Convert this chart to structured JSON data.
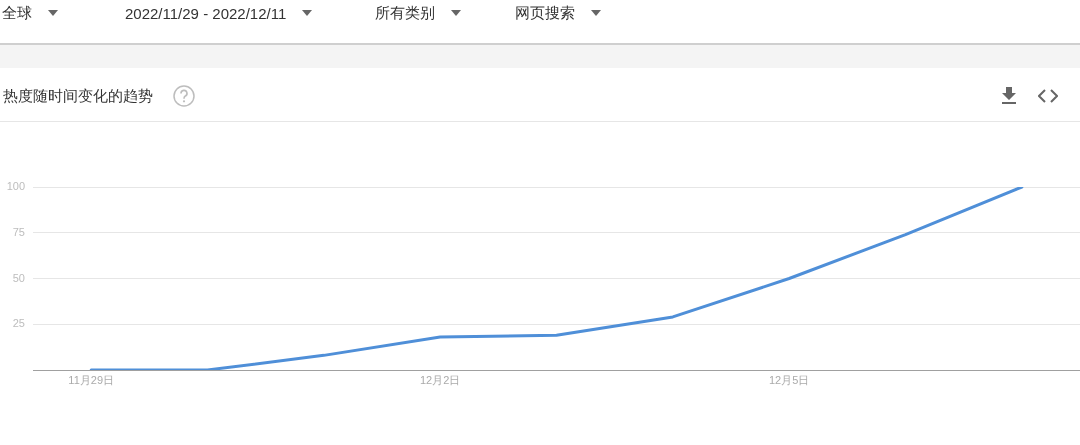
{
  "chart_data": {
    "type": "line",
    "title": "热度随时间变化的趋势",
    "annotations": [
      "全球",
      "2022/11/29 - 2022/12/11",
      "所有类别",
      "网页搜索"
    ],
    "categories": [
      "11月29日",
      null,
      null,
      "12月2日",
      null,
      null,
      "12月5日",
      null,
      null
    ],
    "values": [
      0,
      0,
      8,
      18,
      19,
      29,
      50,
      74,
      100
    ],
    "color": "#4f8fd8",
    "ylim": [
      0,
      100
    ],
    "yticks": [
      {
        "value": 0,
        "label": null
      },
      25,
      50,
      75,
      100
    ],
    "grid": "y",
    "marker": "none"
  }
}
